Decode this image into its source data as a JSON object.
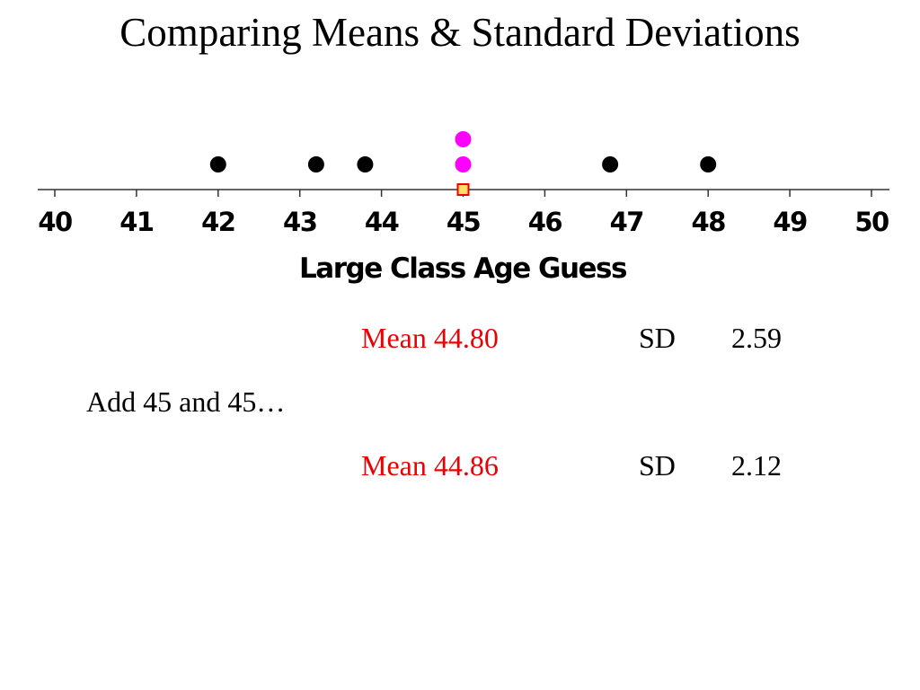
{
  "slide": {
    "title": "Comparing Means & Standard Deviations",
    "note": "Add 45 and 45…"
  },
  "stats": [
    {
      "mean_label": "Mean 44.80",
      "sd_label": "SD",
      "sd_value": "2.59"
    },
    {
      "mean_label": "Mean 44.86",
      "sd_label": "SD",
      "sd_value": "2.12"
    }
  ],
  "chart_data": {
    "type": "scatter",
    "title": "",
    "xlabel": "Large Class Age Guess",
    "ylabel": "",
    "xlim": [
      40,
      50
    ],
    "ticks": [
      40,
      41,
      42,
      43,
      44,
      45,
      46,
      47,
      48,
      49,
      50
    ],
    "grid": false,
    "series": [
      {
        "color": "#000000",
        "marker": "dot",
        "points": [
          {
            "x": 42,
            "stack": 1
          },
          {
            "x": 43.2,
            "stack": 1
          },
          {
            "x": 43.8,
            "stack": 1
          },
          {
            "x": 46.8,
            "stack": 1
          },
          {
            "x": 48,
            "stack": 1
          }
        ]
      },
      {
        "color": "#ff00ff",
        "marker": "dot",
        "points": [
          {
            "x": 45,
            "stack": 1
          },
          {
            "x": 45,
            "stack": 2
          }
        ]
      },
      {
        "color": "#ffe066",
        "edge": "#ee0000",
        "marker": "square",
        "points": [
          {
            "x": 45,
            "stack": 0
          }
        ]
      }
    ]
  }
}
